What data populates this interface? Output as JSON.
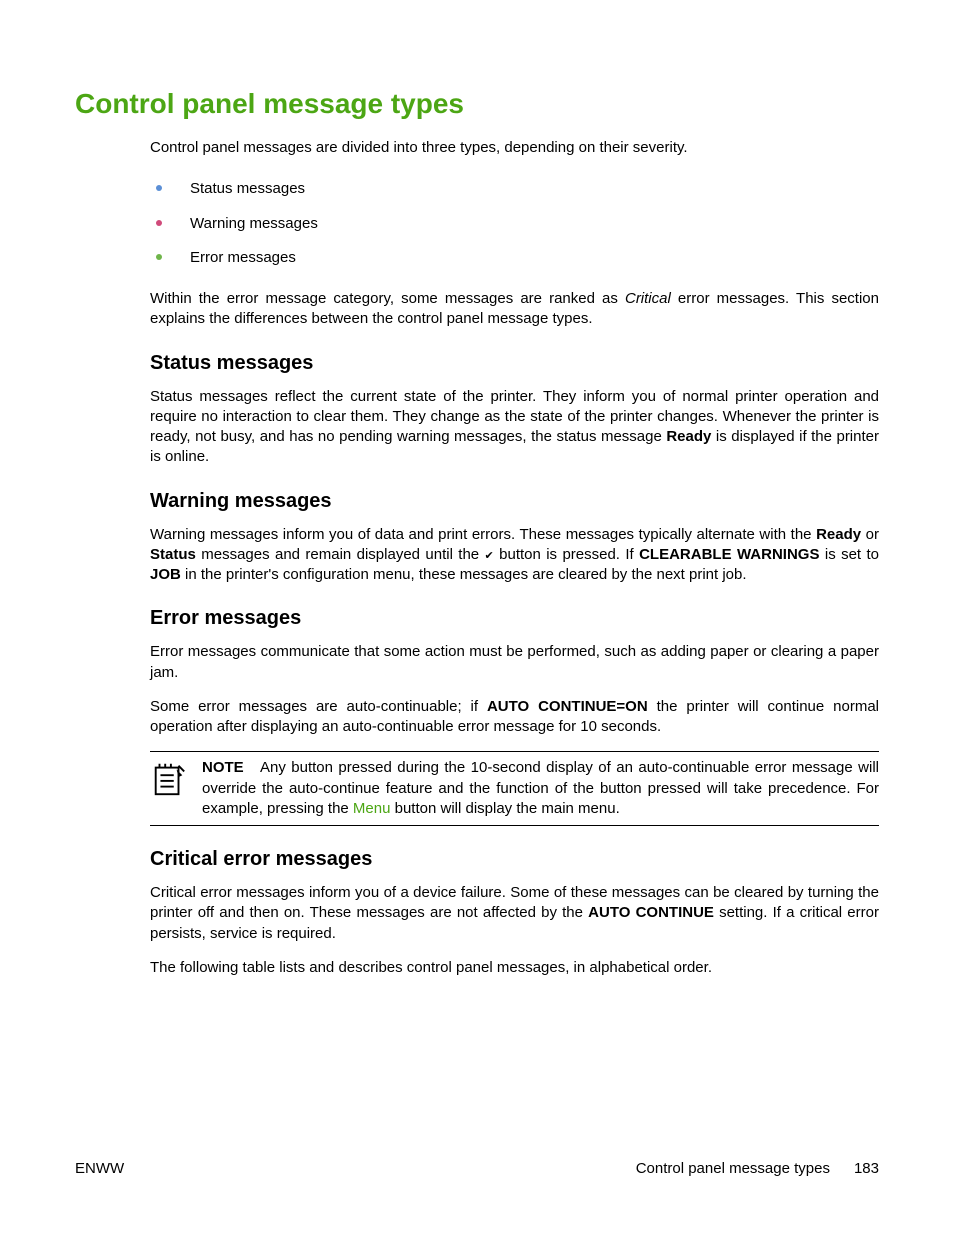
{
  "colors": {
    "accent": "#4ca614",
    "bullet1": "#5b8fd6",
    "bullet2": "#d04a7a",
    "bullet3": "#6fb54a",
    "text": "#000000",
    "background": "#ffffff"
  },
  "title": "Control panel message types",
  "intro": "Control panel messages are divided into three types, depending on their severity.",
  "bullets": [
    "Status messages",
    "Warning messages",
    "Error messages"
  ],
  "intro2_a": "Within the error message category, some messages are ranked as ",
  "intro2_critical": "Critical",
  "intro2_b": " error messages. This section explains the differences between the control panel message types.",
  "sections": {
    "status": {
      "heading": "Status messages",
      "p1_a": "Status messages reflect the current state of the printer. They inform you of normal printer operation and require no interaction to clear them. They change as the state of the printer changes. Whenever the printer is ready, not busy, and has no pending warning messages, the status message ",
      "p1_ready": "Ready",
      "p1_b": " is displayed if the printer is online."
    },
    "warning": {
      "heading": "Warning messages",
      "p1_a": "Warning messages inform you of data and print errors. These messages typically alternate with the ",
      "p1_ready": "Ready",
      "p1_b": " or ",
      "p1_status": "Status",
      "p1_c": " messages and remain displayed until the ",
      "p1_d": " button is pressed. If ",
      "p1_clearable": "CLEARABLE WARNINGS",
      "p1_e": " is set to ",
      "p1_job": "JOB",
      "p1_f": " in the printer's configuration menu, these messages are cleared by the next print job."
    },
    "error": {
      "heading": "Error messages",
      "p1": "Error messages communicate that some action must be performed, such as adding paper or clearing a paper jam.",
      "p2_a": "Some error messages are auto-continuable; if ",
      "p2_auto": "AUTO CONTINUE=ON",
      "p2_b": " the printer will continue normal operation after displaying an auto-continuable error message for 10 seconds.",
      "note_label": "NOTE",
      "note_a": "Any button pressed during the 10-second display of an auto-continuable error message will override the auto-continue feature and the function of the button pressed will take precedence. For example, pressing the ",
      "note_menu": "Menu",
      "note_b": " button will display the main menu."
    },
    "critical": {
      "heading": "Critical error messages",
      "p1_a": "Critical error messages inform you of a device failure. Some of these messages can be cleared by turning the printer off and then on. These messages are not affected by the ",
      "p1_auto": "AUTO CONTINUE",
      "p1_b": " setting. If a critical error persists, service is required.",
      "p2": "The following table lists and describes control panel messages, in alphabetical order."
    }
  },
  "footer": {
    "left": "ENWW",
    "right_label": "Control panel message types",
    "page_number": "183"
  }
}
